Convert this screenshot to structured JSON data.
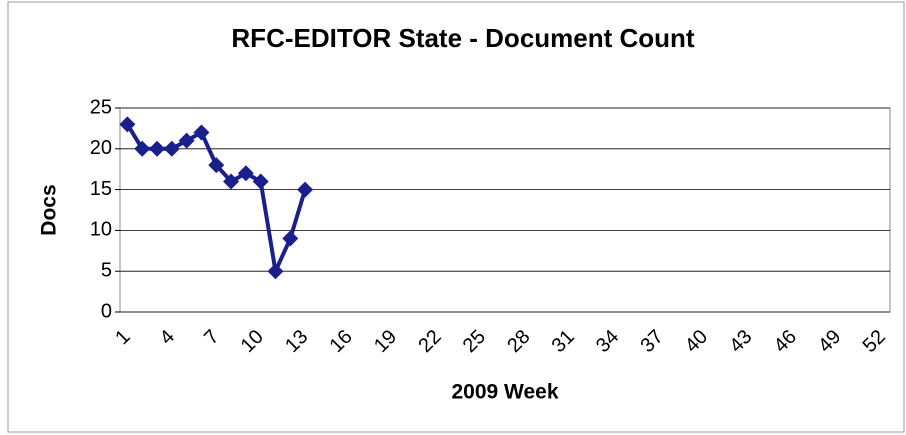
{
  "chart_data": {
    "type": "line",
    "title": "RFC-EDITOR State - Document Count",
    "x_label": "2009 Week",
    "y_label": "Docs",
    "categories": [
      "1",
      null,
      null,
      "4",
      null,
      null,
      "7",
      null,
      null,
      "10",
      null,
      null,
      "13",
      null,
      null,
      "16",
      null,
      null,
      "19",
      null,
      null,
      "22",
      null,
      null,
      "25",
      null,
      null,
      "28",
      null,
      null,
      "31",
      null,
      null,
      "34",
      null,
      null,
      "37",
      null,
      null,
      "40",
      null,
      null,
      "43",
      null,
      null,
      "46",
      null,
      null,
      "49",
      null,
      null,
      "52"
    ],
    "series": [
      {
        "name": "Docs",
        "color": "#1a1f8c",
        "values": [
          23,
          20,
          20,
          20,
          21,
          22,
          18,
          16,
          17,
          16,
          5,
          9,
          15,
          null,
          null,
          null,
          null,
          null,
          null,
          null,
          null,
          null,
          null,
          null,
          null,
          null,
          null,
          null,
          null,
          null,
          null,
          null,
          null,
          null,
          null,
          null,
          null,
          null,
          null,
          null,
          null,
          null,
          null,
          null,
          null,
          null,
          null,
          null,
          null,
          null,
          null,
          null
        ]
      }
    ],
    "ylim": [
      0,
      25
    ],
    "yticks": [
      0,
      5,
      10,
      15,
      20,
      25
    ],
    "grid": true
  }
}
